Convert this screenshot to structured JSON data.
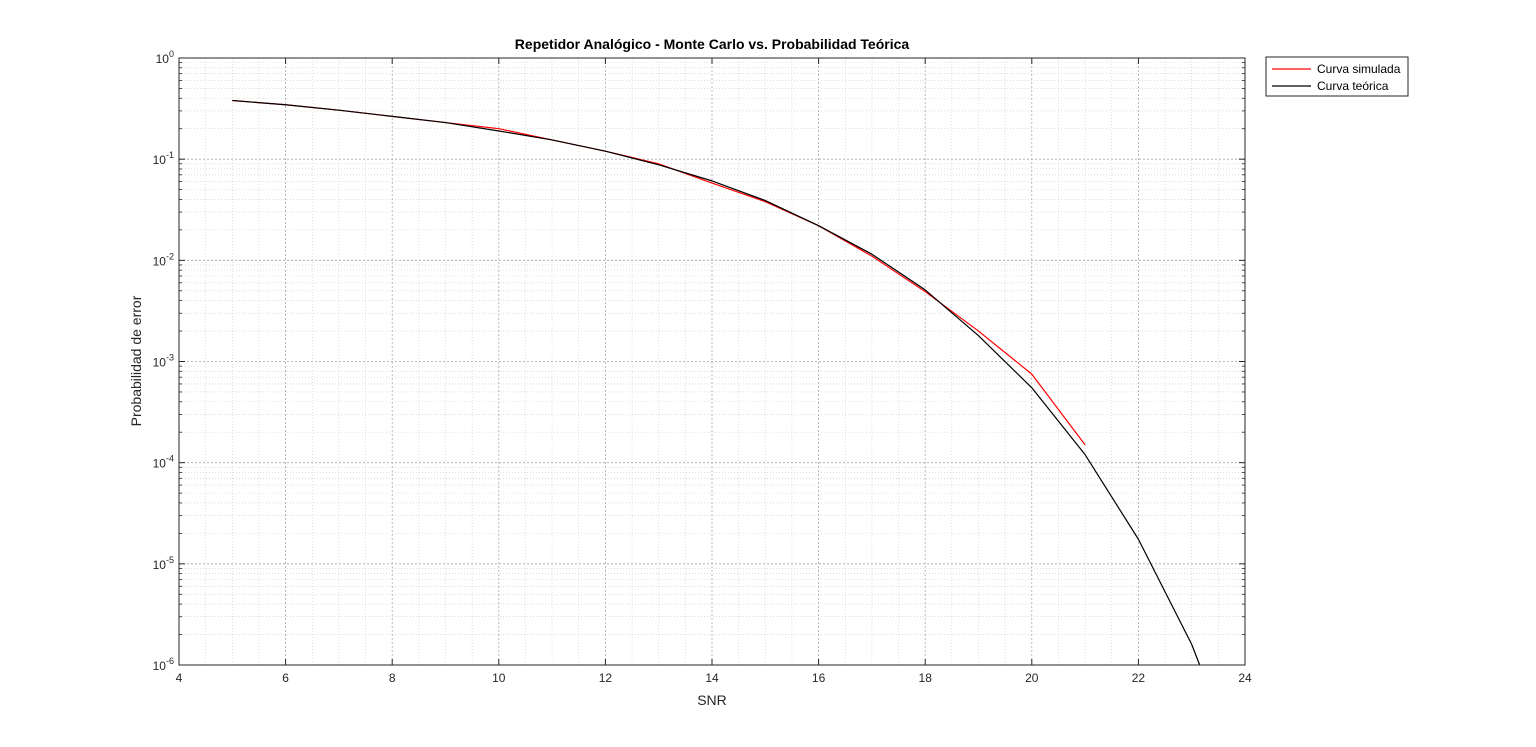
{
  "chart_data": {
    "type": "line",
    "title": "Repetidor Analógico - Monte Carlo vs. Probabilidad Teórica",
    "xlabel": "SNR",
    "ylabel": "Probabilidad de error",
    "xlim": [
      4,
      24
    ],
    "ylim": [
      1e-06,
      1
    ],
    "yscale": "log",
    "grid": true,
    "minor_grid": true,
    "legend_position": "outside-top-right",
    "x_ticks": [
      {
        "value": 4,
        "label": "4"
      },
      {
        "value": 6,
        "label": "6"
      },
      {
        "value": 8,
        "label": "8"
      },
      {
        "value": 10,
        "label": "10"
      },
      {
        "value": 12,
        "label": "12"
      },
      {
        "value": 14,
        "label": "14"
      },
      {
        "value": 16,
        "label": "16"
      },
      {
        "value": 18,
        "label": "18"
      },
      {
        "value": 20,
        "label": "20"
      },
      {
        "value": 22,
        "label": "22"
      },
      {
        "value": 24,
        "label": "24"
      }
    ],
    "y_ticks": [
      {
        "value": 1,
        "base": "10",
        "exp": "0"
      },
      {
        "value": 0.1,
        "base": "10",
        "exp": "-1"
      },
      {
        "value": 0.01,
        "base": "10",
        "exp": "-2"
      },
      {
        "value": 0.001,
        "base": "10",
        "exp": "-3"
      },
      {
        "value": 0.0001,
        "base": "10",
        "exp": "-4"
      },
      {
        "value": 1e-05,
        "base": "10",
        "exp": "-5"
      },
      {
        "value": 1e-06,
        "base": "10",
        "exp": "-6"
      }
    ],
    "series": [
      {
        "name": "Curva simulada",
        "color": "#ff0000",
        "x": [
          5,
          6,
          7,
          8,
          9,
          10,
          11,
          12,
          13,
          14,
          15,
          16,
          17,
          18,
          19,
          20,
          21
        ],
        "y": [
          0.38,
          0.345,
          0.305,
          0.265,
          0.23,
          0.2,
          0.155,
          0.12,
          0.09,
          0.058,
          0.038,
          0.022,
          0.011,
          0.0049,
          0.002,
          0.00075,
          0.00015
        ]
      },
      {
        "name": "Curva teórica",
        "color": "#000000",
        "x": [
          5,
          6,
          7,
          8,
          9,
          10,
          11,
          12,
          13,
          14,
          15,
          16,
          17,
          18,
          19,
          20,
          21,
          22,
          23,
          23.15
        ],
        "y": [
          0.38,
          0.345,
          0.305,
          0.265,
          0.23,
          0.19,
          0.155,
          0.12,
          0.088,
          0.061,
          0.039,
          0.022,
          0.0115,
          0.0051,
          0.0018,
          0.00055,
          0.00012,
          1.75e-05,
          1.6e-06,
          1e-06
        ]
      }
    ]
  }
}
